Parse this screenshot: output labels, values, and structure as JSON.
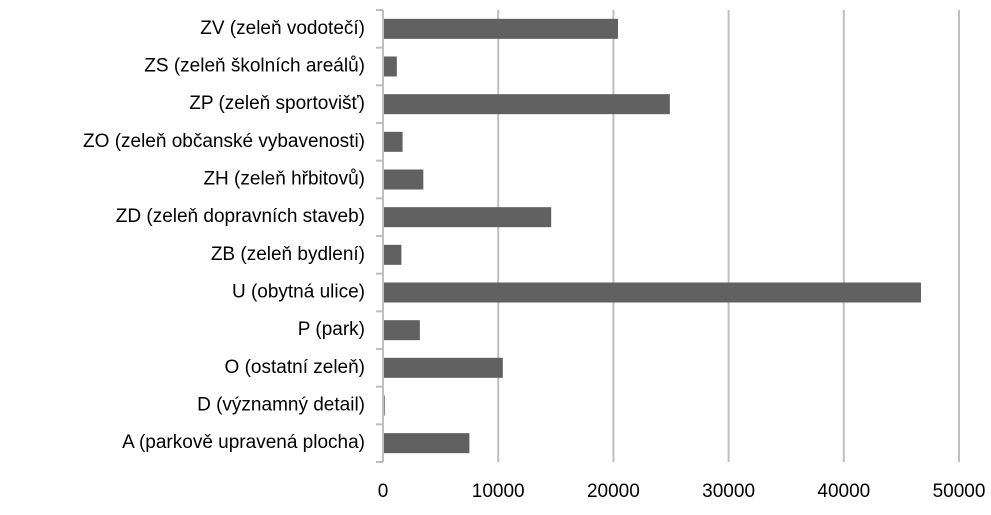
{
  "chart_data": {
    "type": "bar",
    "orientation": "horizontal",
    "categories": [
      "ZV (zeleň vodotečí)",
      "ZS (zeleň školních areálů)",
      "ZP (zeleň sportovišť)",
      "ZO (zeleň občanské vybavenosti)",
      "ZH (zeleň hřbitovů)",
      "ZD (zeleň dopravních staveb)",
      "ZB (zeleň bydlení)",
      "U (obytná ulice)",
      "P (park)",
      "O (ostatní zeleň)",
      "D (významný detail)",
      "A (parkově upravená plocha)"
    ],
    "values": [
      20400,
      1200,
      24900,
      1700,
      3500,
      14600,
      1600,
      46700,
      3200,
      10400,
      150,
      7500
    ],
    "color": "#616161",
    "xlim": [
      0,
      50000
    ],
    "xticks": [
      0,
      10000,
      20000,
      30000,
      40000,
      50000
    ],
    "grid": true
  }
}
